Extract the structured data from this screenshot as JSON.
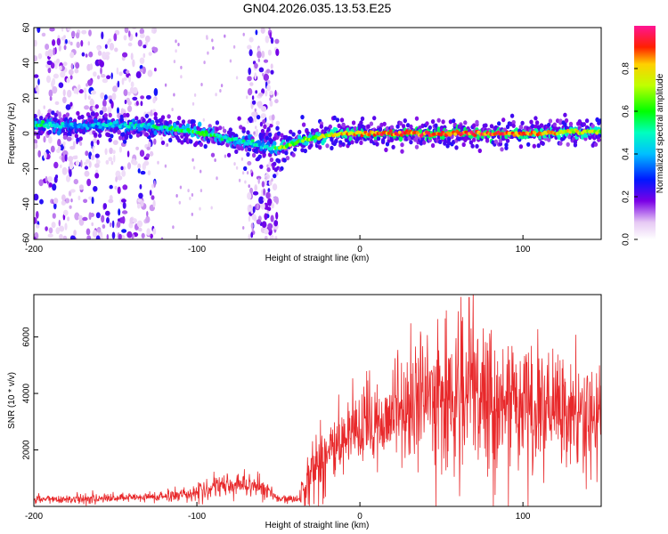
{
  "title": "GN04.2026.035.13.53.E25",
  "chart_data": [
    {
      "type": "heatmap",
      "xlabel": "Height of straight line (km)",
      "ylabel": "Frequency (Hz)",
      "xlim": [
        -200,
        148
      ],
      "ylim": [
        -60,
        60
      ],
      "xticks": [
        -200,
        -100,
        0,
        100
      ],
      "yticks": [
        -60,
        -40,
        -20,
        0,
        20,
        40,
        60
      ],
      "colorbar": {
        "label": "Normalized spectral amplitude",
        "range": [
          0,
          1
        ],
        "ticks": [
          "0.0",
          "0.2",
          "0.4",
          "0.6",
          "0.8"
        ],
        "tick_values": [
          0,
          0.2,
          0.4,
          0.6,
          0.8
        ]
      },
      "ridge": {
        "x": [
          -200,
          -185,
          -170,
          -150,
          -130,
          -110,
          -95,
          -80,
          -65,
          -55,
          -48,
          -40,
          -30,
          -20,
          -10,
          0,
          20,
          60,
          100,
          130,
          148
        ],
        "freq": [
          5,
          5,
          4,
          5,
          4,
          2,
          0,
          -3,
          -6,
          -8,
          -8,
          -5,
          -3,
          -1,
          0,
          0,
          0,
          0,
          0,
          1,
          1
        ],
        "amplitude": [
          0.5,
          0.45,
          0.35,
          0.45,
          0.45,
          0.55,
          0.55,
          0.5,
          0.45,
          0.4,
          0.7,
          0.6,
          0.65,
          0.75,
          0.8,
          0.85,
          0.9,
          0.9,
          0.85,
          0.75,
          0.7
        ]
      },
      "noise_bands_x": [
        [
          -200,
          -125
        ],
        [
          -68,
          -50
        ]
      ]
    },
    {
      "type": "line",
      "xlabel": "Height of straight line (km)",
      "ylabel": "SNR (10 * v/v)",
      "xlim": [
        -200,
        148
      ],
      "ylim": [
        0,
        7500
      ],
      "xticks": [
        -200,
        -100,
        0,
        100
      ],
      "yticks": [
        2000,
        4000,
        6000
      ],
      "color": "#e8282a",
      "envelope": {
        "x": [
          -200,
          -150,
          -120,
          -100,
          -85,
          -70,
          -60,
          -50,
          -38,
          -35,
          -30,
          -25,
          -20,
          -10,
          0,
          10,
          20,
          30,
          40,
          50,
          60,
          70,
          80,
          90,
          100,
          110,
          120,
          130,
          140,
          148
        ],
        "mean": [
          250,
          280,
          350,
          500,
          700,
          800,
          700,
          250,
          250,
          700,
          1200,
          1600,
          1900,
          2200,
          2600,
          3000,
          3300,
          3600,
          3800,
          3900,
          3900,
          3800,
          3700,
          3600,
          3500,
          3400,
          3300,
          3200,
          3100,
          3000
        ],
        "amplitude": [
          150,
          150,
          200,
          250,
          400,
          450,
          400,
          120,
          120,
          700,
          1000,
          1400,
          1500,
          1500,
          1500,
          1500,
          1600,
          2000,
          2200,
          2300,
          2400,
          2500,
          2400,
          2300,
          2200,
          2100,
          1900,
          1800,
          1700,
          1700
        ]
      },
      "peak": {
        "x": 67,
        "y": 7400
      }
    }
  ]
}
